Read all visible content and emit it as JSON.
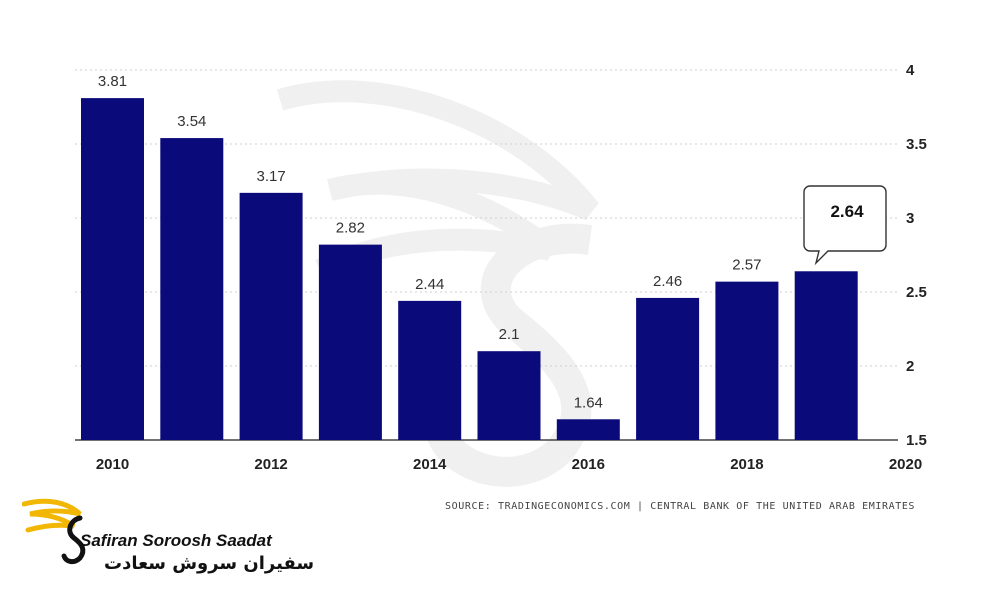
{
  "chart_data": {
    "type": "bar",
    "categories": [
      "2010",
      "2011",
      "2012",
      "2013",
      "2014",
      "2015",
      "2016",
      "2017",
      "2018",
      "2019"
    ],
    "values": [
      3.81,
      3.54,
      3.17,
      2.82,
      2.44,
      2.1,
      1.64,
      2.46,
      2.57,
      2.64
    ],
    "data_labels": [
      "3.81",
      "3.54",
      "3.17",
      "2.82",
      "2.44",
      "2.1",
      "1.64",
      "2.46",
      "2.57",
      ""
    ],
    "x_tick_labels": [
      "2010",
      "2012",
      "2014",
      "2016",
      "2018",
      "2020"
    ],
    "y_tick_labels": [
      "4",
      "3.5",
      "3",
      "2.5",
      "2",
      "1.5"
    ],
    "ylim": [
      1.5,
      4
    ],
    "grid": true,
    "y_axis_side": "right",
    "bar_color": "#0a0a7a",
    "callout": {
      "category": "2019",
      "label": "2.64"
    }
  },
  "footer": {
    "source": "SOURCE: TRADINGECONOMICS.COM | CENTRAL BANK OF THE UNITED ARAB EMIRATES"
  },
  "brand": {
    "name_en": "Safiran Soroosh Saadat",
    "name_fa": "سفیران سروش سعادت",
    "accent_color": "#f2b705"
  }
}
